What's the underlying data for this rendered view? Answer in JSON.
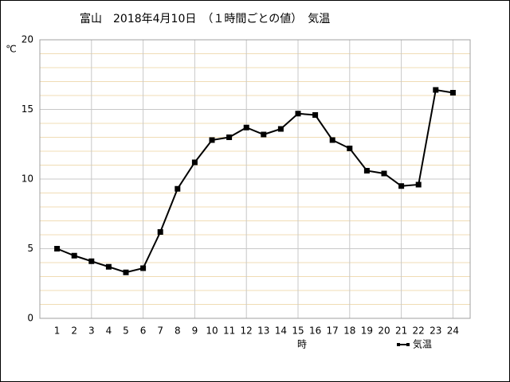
{
  "chart_data": {
    "type": "line",
    "title": "富山　2018年4月10日　（１時間ごとの値）　気温",
    "y_unit": "℃",
    "x_label": "時",
    "x": [
      1,
      2,
      3,
      4,
      5,
      6,
      7,
      8,
      9,
      10,
      11,
      12,
      13,
      14,
      15,
      16,
      17,
      18,
      19,
      20,
      21,
      22,
      23,
      24
    ],
    "xlim": [
      0,
      25
    ],
    "xticks": [
      1,
      2,
      3,
      4,
      5,
      6,
      7,
      8,
      9,
      10,
      11,
      12,
      13,
      14,
      15,
      16,
      17,
      18,
      19,
      20,
      21,
      22,
      23,
      24
    ],
    "ylim": [
      0,
      20
    ],
    "yticks": [
      0,
      5,
      10,
      15,
      20
    ],
    "grid": true,
    "legend": "bottom-right",
    "series": [
      {
        "name": "気温",
        "color": "#000000",
        "values": [
          5.0,
          4.5,
          4.1,
          3.7,
          3.3,
          3.6,
          6.2,
          9.3,
          11.2,
          12.8,
          13.0,
          13.7,
          13.2,
          13.6,
          14.7,
          14.6,
          12.8,
          12.2,
          10.6,
          10.4,
          9.5,
          9.6,
          16.4,
          16.2
        ]
      }
    ]
  }
}
